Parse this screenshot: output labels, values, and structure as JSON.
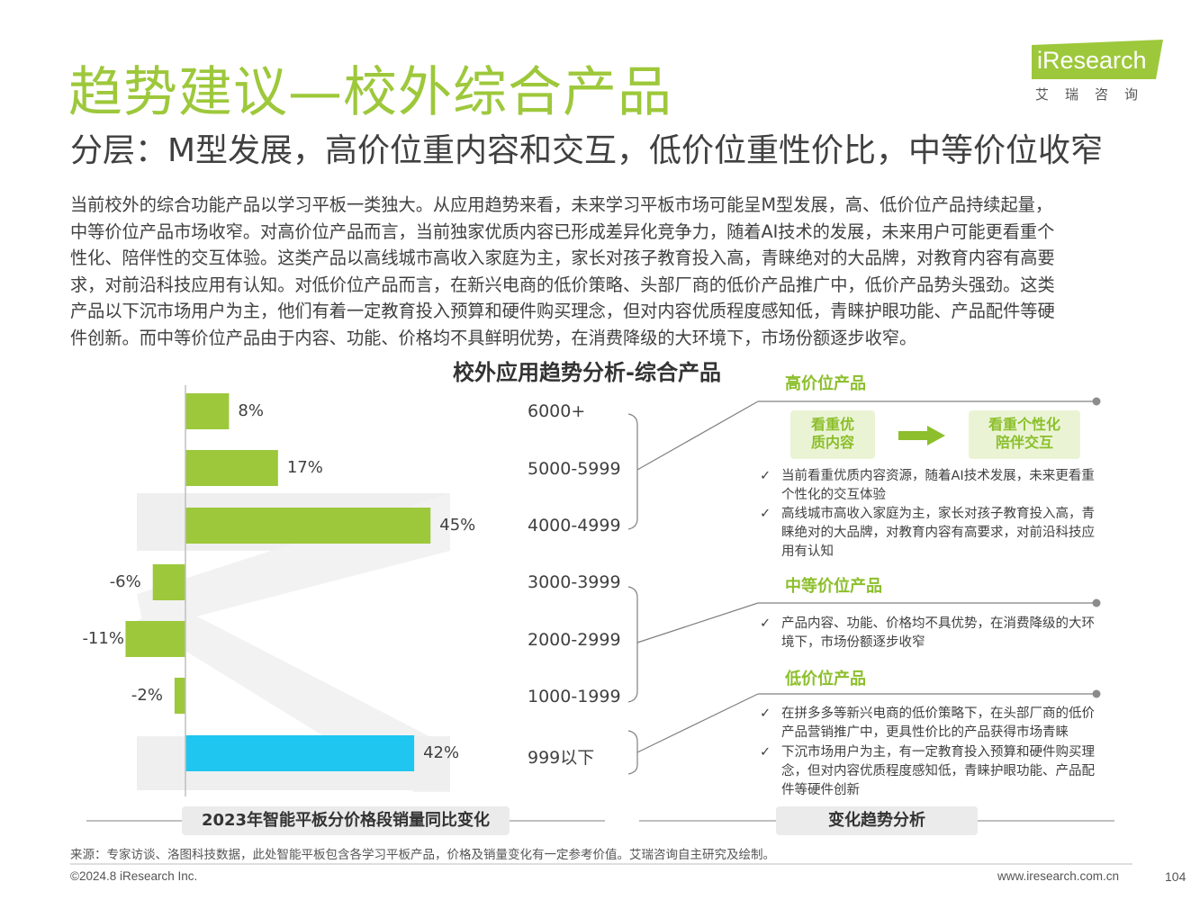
{
  "header": {
    "title": "趋势建议—校外综合产品",
    "subtitle": "分层：M型发展，高价位重内容和交互，低价位重性价比，中等价位收窄"
  },
  "logo": {
    "name": "iResearch",
    "cn": "艾瑞咨询",
    "brand_color": "#9dc83b"
  },
  "body": [
    "当前校外的综合功能产品以学习平板一类独大。从应用趋势来看，未来学习平板市场可能呈M型发展，高、低价位产品持续起量，",
    "中等价位产品市场收窄。对高价位产品而言，当前独家优质内容已形成差异化竞争力，随着AI技术的发展，未来用户可能更看重个",
    "性化、陪伴性的交互体验。这类产品以高线城市高收入家庭为主，家长对孩子教育投入高，青睐绝对的大品牌，对教育内容有高要",
    "求，对前沿科技应用有认知。对低价位产品而言，在新兴电商的低价策略、头部厂商的低价产品推广中，低价产品势头强劲。这类",
    "产品以下沉市场用户为主，他们有着一定教育投入预算和硬件购买理念，但对内容优质程度感知低，青睐护眼功能、产品配件等硬",
    "件创新。而中等价位产品由于内容、功能、价格均不具鲜明优势，在消费降级的大环境下，市场份额逐步收窄。"
  ],
  "chart_title": "校外应用趋势分析-综合产品",
  "chart_data": {
    "type": "bar",
    "orientation": "horizontal",
    "title": "2023年智能平板分价格段销量同比变化",
    "categories": [
      "6000+",
      "5000-5999",
      "4000-4999",
      "3000-3999",
      "2000-2999",
      "1000-1999",
      "999以下"
    ],
    "values": [
      8,
      17,
      45,
      -6,
      -11,
      -2,
      42
    ],
    "value_labels": [
      "8%",
      "17%",
      "45%",
      "-6%",
      "-11%",
      "-2%",
      "42%"
    ],
    "unit": "%",
    "colors": {
      "default": "#9dc83b",
      "highlight": "#1fc6f0"
    },
    "highlight_index": 6
  },
  "trend": {
    "high": {
      "heading": "高价位产品",
      "box_from": "看重优\n质内容",
      "box_to": "看重个性化\n陪伴交互",
      "bullets": [
        "当前看重优质内容资源，随着AI技术发展，未来更看重个性化的交互体验",
        "高线城市高收入家庭为主，家长对孩子教育投入高，青睐绝对的大品牌，对教育内容有高要求，对前沿科技应用有认知"
      ]
    },
    "mid": {
      "heading": "中等价位产品",
      "bullets": [
        "产品内容、功能、价格均不具优势，在消费降级的大环境下，市场份额逐步收窄"
      ]
    },
    "low": {
      "heading": "低价位产品",
      "bullets": [
        "在拼多多等新兴电商的低价策略下，在头部厂商的低价产品营销推广中，更具性价比的产品获得市场青睐",
        "下沉市场用户为主，有一定教育投入预算和硬件购买理念，但对内容优质程度感知低，青睐护眼功能、产品配件等硬件创新"
      ]
    }
  },
  "bottom_labels": {
    "left": "2023年智能平板分价格段销量同比变化",
    "right": "变化趋势分析"
  },
  "source": "来源：专家访谈、洛图科技数据，此处智能平板包含各学习平板产品，价格及销量变化有一定参考价值。艾瑞咨询自主研究及绘制。",
  "footer": {
    "copyright": "©2024.8 iResearch Inc.",
    "url": "www.iresearch.com.cn",
    "page": "104"
  }
}
